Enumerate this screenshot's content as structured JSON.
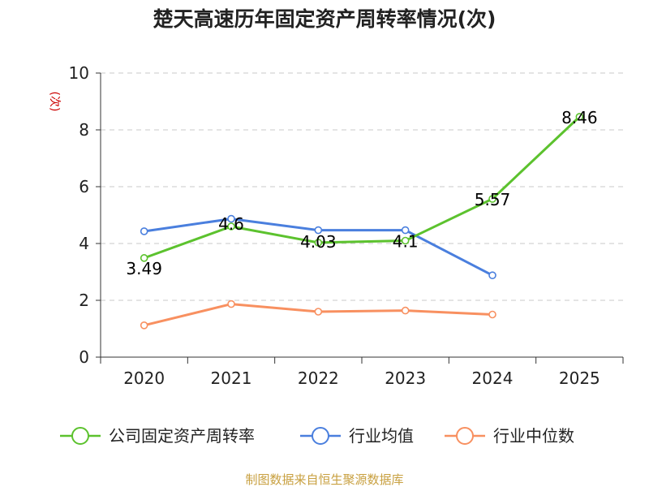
{
  "chart_data": {
    "type": "line",
    "title": "楚天高速历年固定资产周转率情况(次)",
    "ylabel": "(次)",
    "xlabel": "",
    "categories": [
      "2020",
      "2021",
      "2022",
      "2023",
      "2024",
      "2025"
    ],
    "ylim": [
      0,
      10
    ],
    "yticks": [
      0,
      2,
      4,
      6,
      8,
      10
    ],
    "grid": true,
    "legend_position": "bottom",
    "series": [
      {
        "name": "公司固定资产周转率",
        "values": [
          3.49,
          4.6,
          4.03,
          4.1,
          5.57,
          8.46
        ],
        "labels": [
          "3.49",
          "4.6",
          "4.03",
          "4.1",
          "5.57",
          "8.46"
        ],
        "color": "#5cc22e"
      },
      {
        "name": "行业均值",
        "values": [
          4.43,
          4.87,
          4.47,
          4.47,
          2.88,
          null
        ],
        "color": "#4a7fde"
      },
      {
        "name": "行业中位数",
        "values": [
          1.12,
          1.87,
          1.6,
          1.64,
          1.5,
          null
        ],
        "color": "#f89060"
      }
    ]
  },
  "source": "制图数据来自恒生聚源数据库"
}
